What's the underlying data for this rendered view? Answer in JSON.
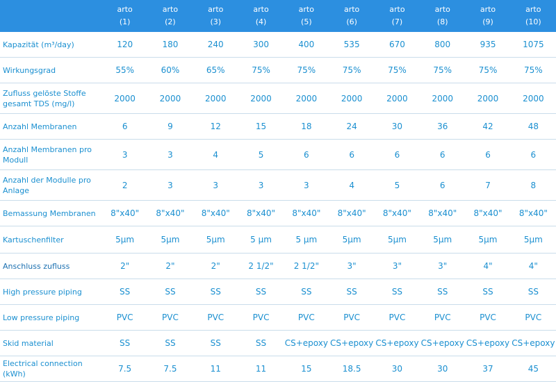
{
  "models": [
    {
      "name": "arto",
      "num": "(1)"
    },
    {
      "name": "arto",
      "num": "(2)"
    },
    {
      "name": "arto",
      "num": "(3)"
    },
    {
      "name": "arto",
      "num": "(4)"
    },
    {
      "name": "arto",
      "num": "(5)"
    },
    {
      "name": "arto",
      "num": "(6)"
    },
    {
      "name": "arto",
      "num": "(7)"
    },
    {
      "name": "arto",
      "num": "(8)"
    },
    {
      "name": "arto",
      "num": "(9)"
    },
    {
      "name": "arto",
      "num": "(10)"
    }
  ],
  "rows": [
    {
      "label": "Kapazität (m³/day)",
      "values": [
        "120",
        "180",
        "240",
        "300",
        "400",
        "535",
        "670",
        "800",
        "935",
        "1075"
      ]
    },
    {
      "label": "Wirkungsgrad",
      "values": [
        "55%",
        "60%",
        "65%",
        "75%",
        "75%",
        "75%",
        "75%",
        "75%",
        "75%",
        "75%"
      ]
    },
    {
      "label": "Zufluss gelöste Stoffe gesamt  TDS (mg/l)",
      "values": [
        "2000",
        "2000",
        "2000",
        "2000",
        "2000",
        "2000",
        "2000",
        "2000",
        "2000",
        "2000"
      ]
    },
    {
      "label": "Anzahl Membranen",
      "values": [
        "6",
        "9",
        "12",
        "15",
        "18",
        "24",
        "30",
        "36",
        "42",
        "48"
      ]
    },
    {
      "label": "Anzahl Membranen pro Modull",
      "values": [
        "3",
        "3",
        "4",
        "5",
        "6",
        "6",
        "6",
        "6",
        "6",
        "6"
      ]
    },
    {
      "label": "Anzahl der Modulle pro Anlage",
      "values": [
        "2",
        "3",
        "3",
        "3",
        "3",
        "4",
        "5",
        "6",
        "7",
        "8"
      ]
    },
    {
      "label": "Bemassung Membranen",
      "values": [
        "8\"x40\"",
        "8\"x40\"",
        "8\"x40\"",
        "8\"x40\"",
        "8\"x40\"",
        "8\"x40\"",
        "8\"x40\"",
        "8\"x40\"",
        "8\"x40\"",
        "8\"x40\""
      ]
    },
    {
      "label": "Kartuschenfilter",
      "values": [
        "5µm",
        "5µm",
        "5µm",
        "5 µm",
        "5 µm",
        "5µm",
        "5µm",
        "5µm",
        "5µm",
        "5µm"
      ]
    },
    {
      "label": "Anschluss zufluss",
      "values": [
        "2\"",
        "2\"",
        "2\"",
        "2 1/2\"",
        "2 1/2\"",
        "3\"",
        "3\"",
        "3\"",
        "4\"",
        "4\""
      ]
    },
    {
      "label": "High pressure piping",
      "values": [
        "SS",
        "SS",
        "SS",
        "SS",
        "SS",
        "SS",
        "SS",
        "SS",
        "SS",
        "SS"
      ]
    },
    {
      "label": "Low pressure piping",
      "values": [
        "PVC",
        "PVC",
        "PVC",
        "PVC",
        "PVC",
        "PVC",
        "PVC",
        "PVC",
        "PVC",
        "PVC"
      ]
    },
    {
      "label": "Skid material",
      "values": [
        "SS",
        "SS",
        "SS",
        "SS",
        "CS+epoxy",
        "CS+epoxy",
        "CS+epoxy",
        "CS+epoxy",
        "CS+epoxy",
        "CS+epoxy"
      ]
    },
    {
      "label": "Electrical connection (kWh)",
      "values": [
        "7.5",
        "7.5",
        "11",
        "11",
        "15",
        "18.5",
        "30",
        "30",
        "37",
        "45"
      ]
    }
  ]
}
